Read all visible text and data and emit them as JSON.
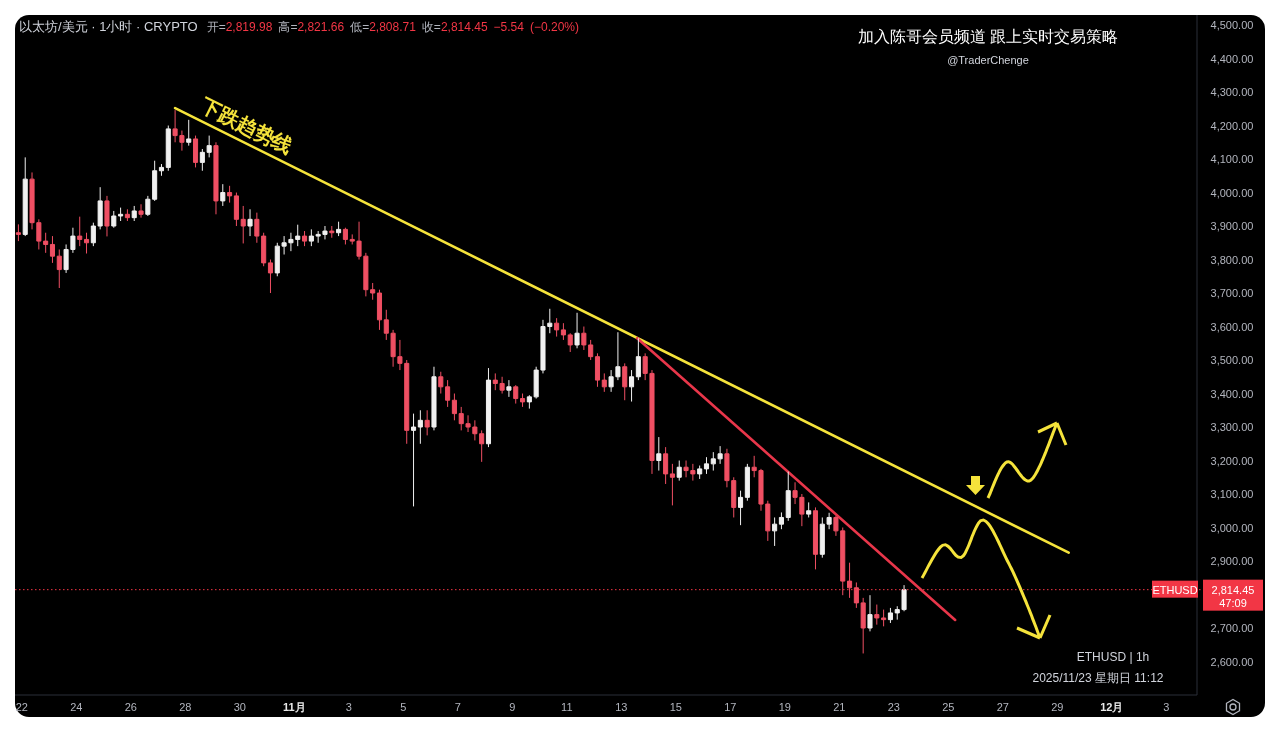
{
  "chart_data": {
    "type": "candlestick",
    "title": "以太坊/美元 · 1小时 · CRYPTO",
    "subtitle": "开=2,819.98 高=2,821.66 低=2,808.71 收=2,814.45 −5.54 (−0.20%)",
    "x": [
      "2025-10-21T21:00",
      "2025-10-22T03:00",
      "2025-10-22T09:00",
      "2025-10-22T15:00",
      "2025-10-22T21:00",
      "2025-10-23T03:00",
      "2025-10-23T09:00",
      "2025-10-23T15:00",
      "2025-10-23T21:00",
      "2025-10-24T03:00",
      "2025-10-24T09:00",
      "2025-10-24T15:00",
      "2025-10-24T21:00",
      "2025-10-25T03:00",
      "2025-10-25T09:00",
      "2025-10-25T15:00",
      "2025-10-25T21:00",
      "2025-10-26T03:00",
      "2025-10-26T09:00",
      "2025-10-26T15:00",
      "2025-10-26T21:00",
      "2025-10-27T03:00",
      "2025-10-27T09:00",
      "2025-10-27T15:00",
      "2025-10-27T21:00",
      "2025-10-28T03:00",
      "2025-10-28T09:00",
      "2025-10-28T15:00",
      "2025-10-28T21:00",
      "2025-10-29T03:00",
      "2025-10-29T09:00",
      "2025-10-29T15:00",
      "2025-10-29T21:00",
      "2025-10-30T03:00",
      "2025-10-30T09:00",
      "2025-10-30T15:00",
      "2025-10-30T21:00",
      "2025-10-31T03:00",
      "2025-10-31T09:00",
      "2025-10-31T15:00",
      "2025-10-31T21:00",
      "2025-11-01T03:00",
      "2025-11-01T09:00",
      "2025-11-01T15:00",
      "2025-11-01T21:00",
      "2025-11-02T03:00",
      "2025-11-02T09:00",
      "2025-11-02T15:00",
      "2025-11-02T21:00",
      "2025-11-03T03:00",
      "2025-11-03T09:00",
      "2025-11-03T15:00",
      "2025-11-03T21:00",
      "2025-11-04T03:00",
      "2025-11-04T09:00",
      "2025-11-04T15:00",
      "2025-11-04T21:00",
      "2025-11-05T03:00",
      "2025-11-05T09:00",
      "2025-11-05T15:00",
      "2025-11-05T21:00",
      "2025-11-06T03:00",
      "2025-11-06T09:00",
      "2025-11-06T15:00",
      "2025-11-06T21:00",
      "2025-11-07T03:00",
      "2025-11-07T09:00",
      "2025-11-07T15:00",
      "2025-11-07T21:00",
      "2025-11-08T03:00",
      "2025-11-08T09:00",
      "2025-11-08T15:00",
      "2025-11-08T21:00",
      "2025-11-09T03:00",
      "2025-11-09T09:00",
      "2025-11-09T15:00",
      "2025-11-09T21:00",
      "2025-11-10T03:00",
      "2025-11-10T09:00",
      "2025-11-10T15:00",
      "2025-11-10T21:00",
      "2025-11-11T03:00",
      "2025-11-11T09:00",
      "2025-11-11T15:00",
      "2025-11-11T21:00",
      "2025-11-12T03:00",
      "2025-11-12T09:00",
      "2025-11-12T15:00",
      "2025-11-12T21:00",
      "2025-11-13T03:00",
      "2025-11-13T09:00",
      "2025-11-13T15:00",
      "2025-11-13T21:00",
      "2025-11-14T03:00",
      "2025-11-14T09:00",
      "2025-11-14T15:00",
      "2025-11-14T21:00",
      "2025-11-15T03:00",
      "2025-11-15T09:00",
      "2025-11-15T15:00",
      "2025-11-15T21:00",
      "2025-11-16T03:00",
      "2025-11-16T09:00",
      "2025-11-16T15:00",
      "2025-11-16T21:00",
      "2025-11-17T03:00",
      "2025-11-17T09:00",
      "2025-11-17T15:00",
      "2025-11-17T21:00",
      "2025-11-18T03:00",
      "2025-11-18T09:00",
      "2025-11-18T15:00",
      "2025-11-18T21:00",
      "2025-11-19T03:00",
      "2025-11-19T09:00",
      "2025-11-19T15:00",
      "2025-11-19T21:00",
      "2025-11-20T03:00",
      "2025-11-20T09:00",
      "2025-11-20T15:00",
      "2025-11-20T21:00",
      "2025-11-21T03:00",
      "2025-11-21T09:00",
      "2025-11-21T15:00",
      "2025-11-21T21:00",
      "2025-11-22T03:00",
      "2025-11-22T09:00",
      "2025-11-22T15:00",
      "2025-11-22T21:00",
      "2025-11-23T03:00",
      "2025-11-23T09:00"
    ],
    "ohlc": [
      [
        3880,
        3905,
        3855,
        3875
      ],
      [
        3875,
        4105,
        3870,
        4040
      ],
      [
        4040,
        4060,
        3890,
        3910
      ],
      [
        3910,
        3920,
        3830,
        3855
      ],
      [
        3855,
        3880,
        3820,
        3845
      ],
      [
        3845,
        3870,
        3790,
        3810
      ],
      [
        3810,
        3830,
        3715,
        3770
      ],
      [
        3770,
        3845,
        3760,
        3830
      ],
      [
        3830,
        3895,
        3820,
        3870
      ],
      [
        3870,
        3928,
        3840,
        3860
      ],
      [
        3860,
        3880,
        3818,
        3850
      ],
      [
        3850,
        3910,
        3840,
        3900
      ],
      [
        3900,
        4016,
        3890,
        3975
      ],
      [
        3975,
        3990,
        3869,
        3900
      ],
      [
        3900,
        3945,
        3895,
        3930
      ],
      [
        3930,
        3955,
        3915,
        3935
      ],
      [
        3935,
        3950,
        3915,
        3925
      ],
      [
        3925,
        3960,
        3915,
        3945
      ],
      [
        3945,
        3965,
        3925,
        3935
      ],
      [
        3935,
        3990,
        3930,
        3980
      ],
      [
        3980,
        4095,
        3975,
        4065
      ],
      [
        4065,
        4085,
        4050,
        4075
      ],
      [
        4075,
        4200,
        4065,
        4190
      ],
      [
        4190,
        4246,
        4150,
        4170
      ],
      [
        4170,
        4185,
        4125,
        4150
      ],
      [
        4150,
        4217,
        4140,
        4160
      ],
      [
        4160,
        4170,
        4075,
        4090
      ],
      [
        4090,
        4130,
        4065,
        4120
      ],
      [
        4120,
        4170,
        4105,
        4140
      ],
      [
        4140,
        4150,
        3935,
        3975
      ],
      [
        3975,
        4025,
        3960,
        4000
      ],
      [
        4000,
        4020,
        3970,
        3990
      ],
      [
        3990,
        4000,
        3900,
        3920
      ],
      [
        3920,
        3960,
        3848,
        3900
      ],
      [
        3900,
        3950,
        3870,
        3920
      ],
      [
        3920,
        3940,
        3850,
        3870
      ],
      [
        3870,
        3880,
        3780,
        3790
      ],
      [
        3790,
        3800,
        3700,
        3760
      ],
      [
        3760,
        3850,
        3750,
        3840
      ],
      [
        3840,
        3870,
        3815,
        3850
      ],
      [
        3850,
        3880,
        3825,
        3860
      ],
      [
        3860,
        3904,
        3840,
        3870
      ],
      [
        3870,
        3885,
        3840,
        3855
      ],
      [
        3855,
        3890,
        3840,
        3870
      ],
      [
        3870,
        3885,
        3850,
        3875
      ],
      [
        3875,
        3900,
        3860,
        3885
      ],
      [
        3885,
        3900,
        3865,
        3880
      ],
      [
        3880,
        3913,
        3870,
        3890
      ],
      [
        3890,
        3895,
        3845,
        3860
      ],
      [
        3860,
        3875,
        3845,
        3855
      ],
      [
        3855,
        3913,
        3800,
        3810
      ],
      [
        3810,
        3820,
        3690,
        3710
      ],
      [
        3710,
        3730,
        3680,
        3700
      ],
      [
        3700,
        3710,
        3590,
        3620
      ],
      [
        3620,
        3650,
        3560,
        3580
      ],
      [
        3580,
        3590,
        3480,
        3510
      ],
      [
        3510,
        3560,
        3470,
        3490
      ],
      [
        3490,
        3500,
        3250,
        3290
      ],
      [
        3290,
        3340,
        3063,
        3300
      ],
      [
        3300,
        3350,
        3250,
        3320
      ],
      [
        3320,
        3350,
        3275,
        3300
      ],
      [
        3300,
        3480,
        3290,
        3450
      ],
      [
        3450,
        3465,
        3400,
        3420
      ],
      [
        3420,
        3440,
        3360,
        3380
      ],
      [
        3380,
        3400,
        3320,
        3340
      ],
      [
        3340,
        3360,
        3290,
        3310
      ],
      [
        3310,
        3335,
        3285,
        3300
      ],
      [
        3300,
        3320,
        3260,
        3280
      ],
      [
        3280,
        3290,
        3196,
        3250
      ],
      [
        3250,
        3476,
        3240,
        3440
      ],
      [
        3440,
        3460,
        3410,
        3430
      ],
      [
        3430,
        3450,
        3400,
        3410
      ],
      [
        3410,
        3440,
        3390,
        3420
      ],
      [
        3420,
        3425,
        3370,
        3385
      ],
      [
        3385,
        3400,
        3360,
        3375
      ],
      [
        3375,
        3395,
        3355,
        3390
      ],
      [
        3390,
        3480,
        3385,
        3470
      ],
      [
        3470,
        3620,
        3460,
        3600
      ],
      [
        3600,
        3653,
        3580,
        3610
      ],
      [
        3610,
        3625,
        3570,
        3590
      ],
      [
        3590,
        3610,
        3560,
        3575
      ],
      [
        3575,
        3580,
        3524,
        3545
      ],
      [
        3545,
        3641,
        3535,
        3580
      ],
      [
        3580,
        3600,
        3530,
        3545
      ],
      [
        3545,
        3560,
        3500,
        3510
      ],
      [
        3510,
        3520,
        3420,
        3440
      ],
      [
        3440,
        3460,
        3405,
        3420
      ],
      [
        3420,
        3470,
        3405,
        3450
      ],
      [
        3450,
        3583,
        3440,
        3480
      ],
      [
        3480,
        3490,
        3380,
        3420
      ],
      [
        3420,
        3470,
        3376,
        3450
      ],
      [
        3450,
        3565,
        3440,
        3510
      ],
      [
        3510,
        3520,
        3440,
        3460
      ],
      [
        3460,
        3470,
        3160,
        3200
      ],
      [
        3200,
        3270,
        3170,
        3220
      ],
      [
        3220,
        3240,
        3130,
        3160
      ],
      [
        3160,
        3190,
        3066,
        3150
      ],
      [
        3150,
        3200,
        3140,
        3180
      ],
      [
        3180,
        3200,
        3150,
        3170
      ],
      [
        3170,
        3190,
        3140,
        3160
      ],
      [
        3160,
        3185,
        3145,
        3175
      ],
      [
        3175,
        3210,
        3160,
        3190
      ],
      [
        3190,
        3225,
        3170,
        3205
      ],
      [
        3205,
        3243,
        3190,
        3220
      ],
      [
        3220,
        3235,
        3120,
        3140
      ],
      [
        3140,
        3150,
        3030,
        3060
      ],
      [
        3060,
        3110,
        3007,
        3090
      ],
      [
        3090,
        3190,
        3080,
        3180
      ],
      [
        3180,
        3214,
        3150,
        3170
      ],
      [
        3170,
        3175,
        3050,
        3070
      ],
      [
        3070,
        3080,
        2960,
        2990
      ],
      [
        2990,
        3030,
        2945,
        3010
      ],
      [
        3010,
        3045,
        2995,
        3030
      ],
      [
        3030,
        3167,
        3020,
        3110
      ],
      [
        3110,
        3135,
        3070,
        3090
      ],
      [
        3090,
        3100,
        3004,
        3040
      ],
      [
        3040,
        3075,
        3030,
        3050
      ],
      [
        3050,
        3060,
        2875,
        2920
      ],
      [
        2920,
        3030,
        2910,
        3010
      ],
      [
        3010,
        3044,
        2995,
        3030
      ],
      [
        3030,
        3035,
        2975,
        2990
      ],
      [
        2990,
        3000,
        2798,
        2840
      ],
      [
        2840,
        2895,
        2790,
        2820
      ],
      [
        2820,
        2836,
        2760,
        2775
      ],
      [
        2775,
        2790,
        2624,
        2700
      ],
      [
        2700,
        2798,
        2690,
        2740
      ],
      [
        2740,
        2770,
        2710,
        2730
      ],
      [
        2730,
        2755,
        2705,
        2725
      ],
      [
        2725,
        2760,
        2715,
        2745
      ],
      [
        2745,
        2765,
        2725,
        2755
      ],
      [
        2755,
        2828,
        2750,
        2814.45
      ]
    ],
    "colors": [
      "#ef4f63",
      "#f0f0f0",
      "#ef4f63",
      "#ef4f63",
      "#ef4f63",
      "#ef4f63",
      "#ef4f63",
      "#f0f0f0",
      "#f0f0f0",
      "#ef4f63",
      "#ef4f63",
      "#f0f0f0",
      "#f0f0f0",
      "#ef4f63",
      "#f0f0f0",
      "#f0f0f0",
      "#ef4f63",
      "#f0f0f0",
      "#ef4f63",
      "#f0f0f0",
      "#f0f0f0",
      "#f0f0f0",
      "#f0f0f0",
      "#ef4f63",
      "#ef4f63",
      "#f0f0f0",
      "#ef4f63",
      "#f0f0f0",
      "#f0f0f0",
      "#ef4f63",
      "#f0f0f0",
      "#ef4f63",
      "#ef4f63",
      "#ef4f63",
      "#f0f0f0",
      "#ef4f63",
      "#ef4f63",
      "#ef4f63",
      "#f0f0f0",
      "#f0f0f0",
      "#f0f0f0",
      "#f0f0f0",
      "#ef4f63",
      "#f0f0f0",
      "#f0f0f0",
      "#f0f0f0",
      "#ef4f63",
      "#f0f0f0",
      "#ef4f63",
      "#ef4f63",
      "#ef4f63",
      "#ef4f63",
      "#ef4f63",
      "#ef4f63",
      "#ef4f63",
      "#ef4f63",
      "#ef4f63",
      "#ef4f63",
      "#f0f0f0",
      "#f0f0f0",
      "#ef4f63",
      "#f0f0f0",
      "#ef4f63",
      "#ef4f63",
      "#ef4f63",
      "#ef4f63",
      "#ef4f63",
      "#ef4f63",
      "#ef4f63",
      "#f0f0f0",
      "#ef4f63",
      "#ef4f63",
      "#f0f0f0",
      "#ef4f63",
      "#ef4f63",
      "#f0f0f0",
      "#f0f0f0",
      "#f0f0f0",
      "#f0f0f0",
      "#ef4f63",
      "#ef4f63",
      "#ef4f63",
      "#f0f0f0",
      "#ef4f63",
      "#ef4f63",
      "#ef4f63",
      "#ef4f63",
      "#f0f0f0",
      "#f0f0f0",
      "#ef4f63",
      "#f0f0f0",
      "#f0f0f0",
      "#ef4f63",
      "#ef4f63",
      "#f0f0f0",
      "#ef4f63",
      "#ef4f63",
      "#f0f0f0",
      "#ef4f63",
      "#ef4f63",
      "#f0f0f0",
      "#f0f0f0",
      "#f0f0f0",
      "#f0f0f0",
      "#ef4f63",
      "#ef4f63",
      "#f0f0f0",
      "#f0f0f0",
      "#ef4f63",
      "#ef4f63",
      "#ef4f63",
      "#f0f0f0",
      "#f0f0f0",
      "#f0f0f0",
      "#ef4f63",
      "#ef4f63",
      "#f0f0f0",
      "#ef4f63",
      "#f0f0f0",
      "#f0f0f0",
      "#ef4f63",
      "#ef4f63",
      "#ef4f63",
      "#ef4f63",
      "#ef4f63",
      "#f0f0f0",
      "#ef4f63",
      "#ef4f63",
      "#f0f0f0",
      "#f0f0f0",
      "#f0f0f0"
    ],
    "series": [
      {
        "type": "line",
        "name": "下跌趋势线",
        "color": "#f5e33b",
        "x": [
          "2025-10-27T15:00",
          "2025-11-29T10:00"
        ],
        "values": [
          4252,
          2925
        ]
      },
      {
        "type": "line",
        "color": "#e8364a",
        "x": [
          "2025-11-13T14:00",
          "2025-11-25T06:00"
        ],
        "values": [
          3565,
          2724
        ]
      }
    ],
    "xlim": [
      "2025-10-21T18:00",
      "2025-12-04T03:00"
    ],
    "xticks": [
      {
        "value": "2025-10-22",
        "label": "22"
      },
      {
        "value": "2025-10-24",
        "label": "24"
      },
      {
        "value": "2025-10-26",
        "label": "26"
      },
      {
        "value": "2025-10-28",
        "label": "28"
      },
      {
        "value": "2025-10-30",
        "label": "30"
      },
      {
        "value": "2025-11-01",
        "label": "11月"
      },
      {
        "value": "2025-11-03",
        "label": "3"
      },
      {
        "value": "2025-11-05",
        "label": "5"
      },
      {
        "value": "2025-11-07",
        "label": "7"
      },
      {
        "value": "2025-11-09",
        "label": "9"
      },
      {
        "value": "2025-11-11",
        "label": "11"
      },
      {
        "value": "2025-11-13",
        "label": "13"
      },
      {
        "value": "2025-11-15",
        "label": "15"
      },
      {
        "value": "2025-11-17",
        "label": "17"
      },
      {
        "value": "2025-11-19",
        "label": "19"
      },
      {
        "value": "2025-11-21",
        "label": "21"
      },
      {
        "value": "2025-11-23",
        "label": "23"
      },
      {
        "value": "2025-11-25",
        "label": "25"
      },
      {
        "value": "2025-11-27",
        "label": "27"
      },
      {
        "value": "2025-11-29",
        "label": "29"
      },
      {
        "value": "2025-12-01",
        "label": "12月"
      },
      {
        "value": "2025-12-03",
        "label": "3"
      }
    ],
    "ylim": [
      2500,
      4530
    ],
    "yticks": [
      {
        "value": 2600,
        "label": "2,600.00"
      },
      {
        "value": 2700,
        "label": "2,700.00"
      },
      {
        "value": 2900,
        "label": "2,900.00"
      },
      {
        "value": 3000,
        "label": "3,000.00"
      },
      {
        "value": 3100,
        "label": "3,100.00"
      },
      {
        "value": 3200,
        "label": "3,200.00"
      },
      {
        "value": 3300,
        "label": "3,300.00"
      },
      {
        "value": 3400,
        "label": "3,400.00"
      },
      {
        "value": 3500,
        "label": "3,500.00"
      },
      {
        "value": 3600,
        "label": "3,600.00"
      },
      {
        "value": 3700,
        "label": "3,700.00"
      },
      {
        "value": 3800,
        "label": "3,800.00"
      },
      {
        "value": 3900,
        "label": "3,900.00"
      },
      {
        "value": 4000,
        "label": "4,000.00"
      },
      {
        "value": 4100,
        "label": "4,100.00"
      },
      {
        "value": 4200,
        "label": "4,200.00"
      },
      {
        "value": 4300,
        "label": "4,300.00"
      },
      {
        "value": 4400,
        "label": "4,400.00"
      },
      {
        "value": 4500,
        "label": "4,500.00"
      }
    ],
    "ref_lines": [
      {
        "axis": "y",
        "value": 2814.45,
        "label": "2,814.45",
        "color": "#f23645",
        "line_style": "dotted"
      }
    ],
    "annotations": [
      "加入陈哥会员频道 跟上实时交易策略",
      "@TraderChenge",
      "ETHUSD | 1h",
      "2025/11/23 星期日 11:12",
      "ETHUSD",
      "47:09"
    ]
  }
}
